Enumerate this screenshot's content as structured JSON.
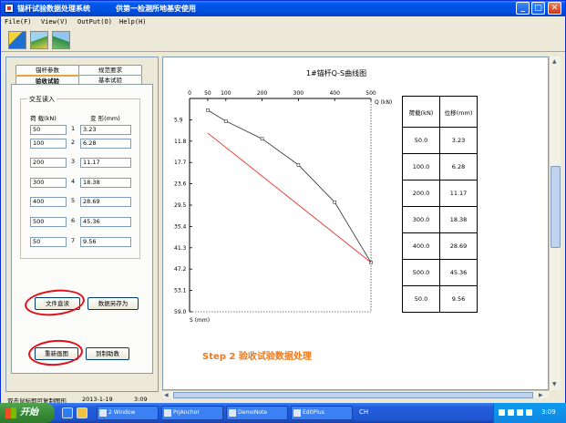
{
  "window": {
    "title": "锚杆试验数据处理系统",
    "subtitle": "供第一检测所地基安使用",
    "controls": {
      "minimize": "_",
      "maximize": "□",
      "close": "✕"
    }
  },
  "menu": [
    "File(F)",
    "View(V)",
    "OutPut(O)",
    "Help(H)"
  ],
  "toolbar": {
    "icons": [
      "chart-tool-icon",
      "landscape-chart-icon",
      "terrain-chart-icon"
    ]
  },
  "tabs": {
    "row1": [
      "锚杆参数",
      "规范要求"
    ],
    "row2": [
      "验收试验",
      "基本试验"
    ],
    "active": "验收试验"
  },
  "input_group": {
    "title": "交互读入",
    "col_load": "荷 载(kN)",
    "col_disp": "变 形(mm)",
    "rows": [
      {
        "idx": "1",
        "load": "50",
        "disp": "3.23"
      },
      {
        "idx": "2",
        "load": "100",
        "disp": "6.28"
      },
      {
        "idx": "3",
        "load": "200",
        "disp": "11.17"
      },
      {
        "idx": "4",
        "load": "300",
        "disp": "18.38"
      },
      {
        "idx": "5",
        "load": "400",
        "disp": "28.69"
      },
      {
        "idx": "6",
        "load": "500",
        "disp": "45.36"
      },
      {
        "idx": "7",
        "load": "50",
        "disp": "9.56"
      }
    ]
  },
  "buttons": {
    "read_file": "文件直读",
    "save_as": "数据另存为",
    "redraw": "重新画图",
    "print": "到制助教"
  },
  "status": {
    "hint": "双击鼠标即可复制图形",
    "date": "2013-1-19",
    "time": "3:09"
  },
  "chart_data": {
    "type": "line",
    "title": "1#锚杆Q-S曲线图",
    "xlabel": "Q (kN)",
    "ylabel": "S (mm)",
    "x_ticks": [
      "0",
      "50",
      "100",
      "200",
      "300",
      "400",
      "500"
    ],
    "y_ticks": [
      "0",
      "5.9",
      "11.8",
      "17.7",
      "23.6",
      "29.5",
      "35.4",
      "41.3",
      "47.2",
      "53.1",
      "59.0"
    ],
    "xlim": [
      0,
      500
    ],
    "ylim": [
      0,
      59
    ],
    "series": [
      {
        "color": "#444444",
        "marker": true,
        "points": [
          [
            50,
            3.23
          ],
          [
            100,
            6.28
          ],
          [
            200,
            11.17
          ],
          [
            300,
            18.38
          ],
          [
            400,
            28.69
          ],
          [
            500,
            45.36
          ]
        ]
      },
      {
        "color": "#e8302a",
        "marker": false,
        "points": [
          [
            50,
            9.56
          ],
          [
            500,
            45.36
          ]
        ]
      }
    ],
    "table": {
      "headers": [
        "荷载(kN)",
        "位移(mm)"
      ],
      "rows": [
        [
          "50.0",
          "3.23"
        ],
        [
          "100.0",
          "6.28"
        ],
        [
          "200.0",
          "11.17"
        ],
        [
          "300.0",
          "18.38"
        ],
        [
          "400.0",
          "28.69"
        ],
        [
          "500.0",
          "45.36"
        ],
        [
          "50.0",
          "9.56"
        ]
      ]
    }
  },
  "annotation": "Step 2 验收试验数据处理",
  "taskbar": {
    "start": "开始",
    "tasks": [
      "2 Window",
      "PrjAnchor",
      "DemoNote",
      "EditPlus"
    ],
    "tray_time": "3:09",
    "lang": "CH"
  }
}
